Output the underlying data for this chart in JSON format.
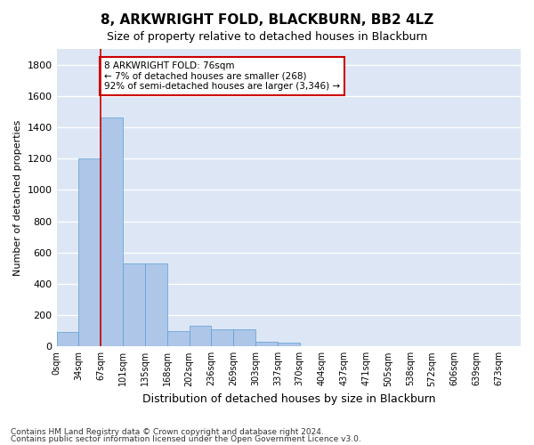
{
  "title": "8, ARKWRIGHT FOLD, BLACKBURN, BB2 4LZ",
  "subtitle": "Size of property relative to detached houses in Blackburn",
  "xlabel": "Distribution of detached houses by size in Blackburn",
  "ylabel": "Number of detached properties",
  "bar_color": "#aec6e8",
  "bar_edge_color": "#5a9fd4",
  "background_color": "#dce6f5",
  "grid_color": "#ffffff",
  "bin_labels": [
    "0sqm",
    "34sqm",
    "67sqm",
    "101sqm",
    "135sqm",
    "168sqm",
    "202sqm",
    "236sqm",
    "269sqm",
    "303sqm",
    "337sqm",
    "370sqm",
    "404sqm",
    "437sqm",
    "471sqm",
    "505sqm",
    "538sqm",
    "572sqm",
    "606sqm",
    "639sqm",
    "673sqm"
  ],
  "bar_values": [
    90,
    1200,
    1460,
    530,
    530,
    100,
    130,
    110,
    110,
    30,
    25,
    0,
    0,
    0,
    0,
    0,
    0,
    0,
    0,
    0,
    0
  ],
  "ylim": [
    0,
    1900
  ],
  "yticks": [
    0,
    200,
    400,
    600,
    800,
    1000,
    1200,
    1400,
    1600,
    1800
  ],
  "vline_x": 2.0,
  "vline_color": "#cc0000",
  "annotation_text": "8 ARKWRIGHT FOLD: 76sqm\n← 7% of detached houses are smaller (268)\n92% of semi-detached houses are larger (3,346) →",
  "annotation_box_color": "#ffffff",
  "annotation_box_edge": "#cc0000",
  "footnote1": "Contains HM Land Registry data © Crown copyright and database right 2024.",
  "footnote2": "Contains public sector information licensed under the Open Government Licence v3.0."
}
